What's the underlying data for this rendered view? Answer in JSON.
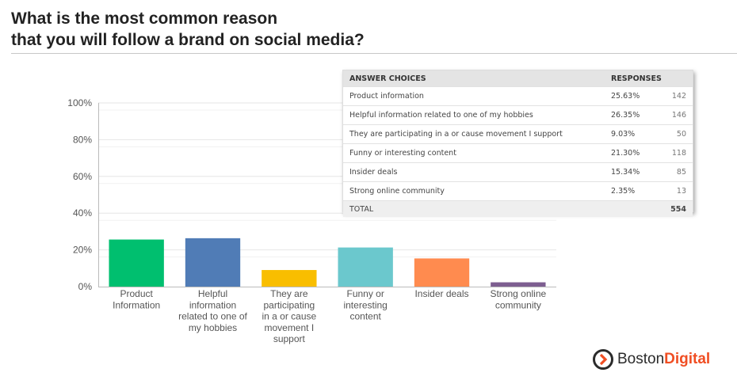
{
  "title_lines": [
    "What is the most common reason",
    "that you will follow a brand on social media?"
  ],
  "chart_data": {
    "type": "bar",
    "categories": [
      [
        "Product",
        "Information"
      ],
      [
        "Helpful",
        "information",
        "related to one of",
        "my hobbies"
      ],
      [
        "They are",
        "participating",
        "in a or cause",
        "movement I",
        "support"
      ],
      [
        "Funny or",
        "interesting",
        "content"
      ],
      [
        "Insider deals"
      ],
      [
        "Strong online",
        "community"
      ]
    ],
    "values": [
      25.63,
      26.35,
      9.03,
      21.3,
      15.34,
      2.35
    ],
    "colors": [
      "#00bf6f",
      "#507cb6",
      "#f9be00",
      "#6bc8cd",
      "#ff8b4f",
      "#7d5e90"
    ],
    "ylim": [
      0,
      100
    ],
    "yticks": [
      0,
      20,
      40,
      60,
      80,
      100
    ],
    "ytick_labels": [
      "0%",
      "20%",
      "40%",
      "60%",
      "80%",
      "100%"
    ],
    "grid": true
  },
  "table": {
    "headers": [
      "ANSWER CHOICES",
      "RESPONSES"
    ],
    "rows": [
      {
        "choice": "Product information",
        "pct": "25.63%",
        "count": "142"
      },
      {
        "choice": "Helpful information related to one of my hobbies",
        "pct": "26.35%",
        "count": "146"
      },
      {
        "choice": "They are participating in a or cause movement I support",
        "pct": "9.03%",
        "count": "50"
      },
      {
        "choice": "Funny or interesting content",
        "pct": "21.30%",
        "count": "118"
      },
      {
        "choice": "Insider deals",
        "pct": "15.34%",
        "count": "85"
      },
      {
        "choice": "Strong online community",
        "pct": "2.35%",
        "count": "13"
      }
    ],
    "total_label": "TOTAL",
    "total_count": "554"
  },
  "logo": {
    "part1": "Boston",
    "part2": "Digital",
    "accent": "#f04e23"
  }
}
